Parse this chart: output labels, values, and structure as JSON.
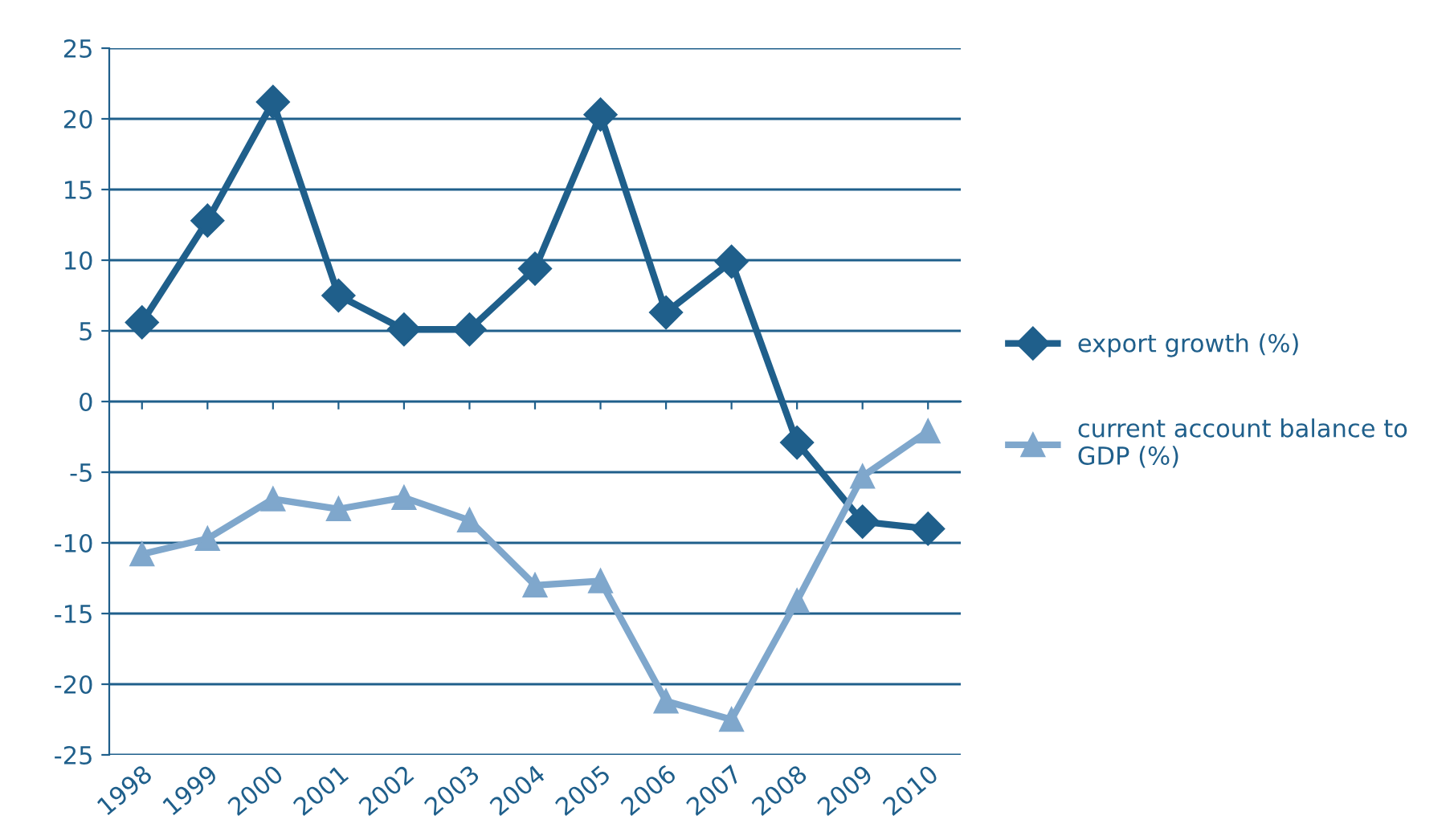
{
  "chart_data": {
    "type": "line",
    "categories": [
      "1998",
      "1999",
      "2000",
      "2001",
      "2002",
      "2003",
      "2004",
      "2005",
      "2006",
      "2007",
      "2008",
      "2009",
      "2010"
    ],
    "series": [
      {
        "name": "export growth (%)",
        "color": "#1f5f8b",
        "marker": "diamond",
        "values": [
          5.6,
          12.8,
          21.2,
          7.5,
          5.1,
          5.1,
          9.4,
          20.3,
          6.3,
          9.9,
          -2.9,
          -8.5,
          -9.0
        ]
      },
      {
        "name": "current account balance to GDP (%)",
        "color": "#7fa7cc",
        "marker": "triangle",
        "values": [
          -10.8,
          -9.7,
          -6.9,
          -7.6,
          -6.8,
          -8.4,
          -13.0,
          -12.7,
          -21.2,
          -22.5,
          -14.1,
          -5.3,
          -2.1
        ]
      }
    ],
    "ylim": [
      -25,
      25
    ],
    "yticks": [
      -25,
      -20,
      -15,
      -10,
      -5,
      0,
      5,
      10,
      15,
      20,
      25
    ],
    "grid": "y",
    "legend": "right"
  }
}
